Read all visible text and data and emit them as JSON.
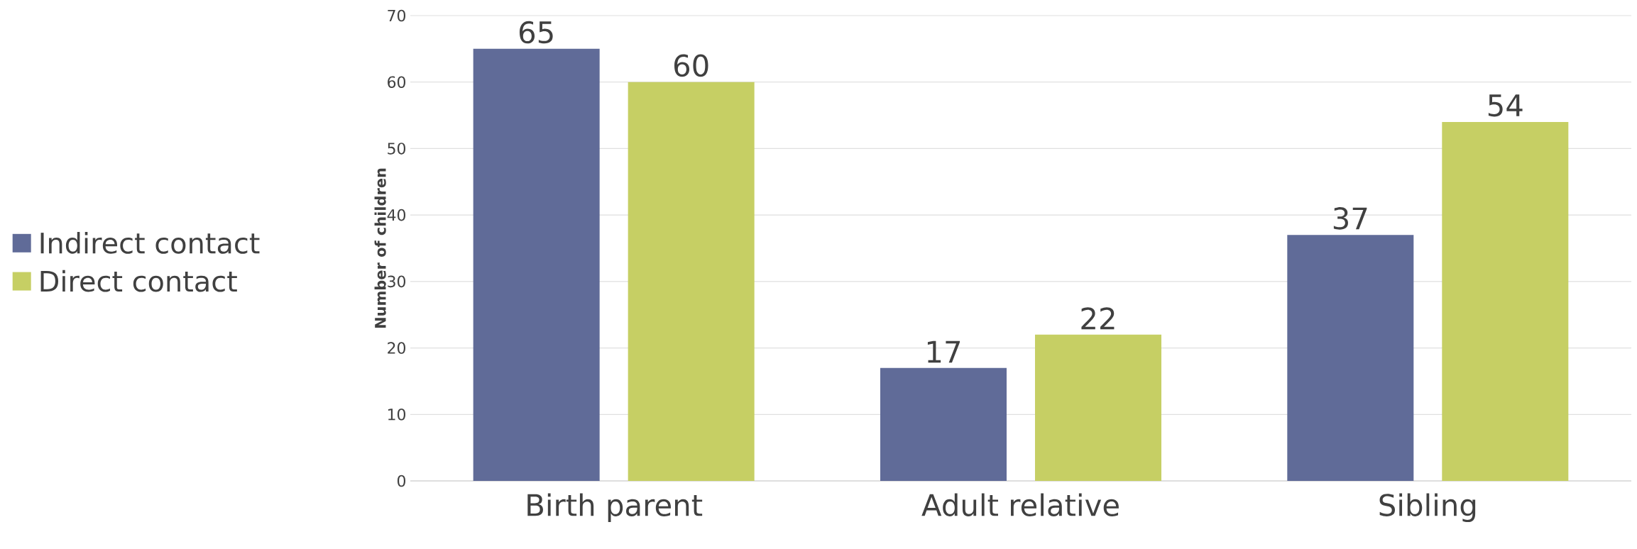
{
  "chart_data": {
    "type": "bar",
    "ylabel": "Number of children",
    "categories": [
      "Birth parent",
      "Adult relative",
      "Sibling"
    ],
    "series": [
      {
        "name": "Indirect contact",
        "color": "#606b98",
        "values": [
          65,
          17,
          37
        ]
      },
      {
        "name": "Direct contact",
        "color": "#c6cf64",
        "values": [
          60,
          22,
          54
        ]
      }
    ],
    "ylim": [
      0,
      70
    ],
    "yticks": [
      0,
      10,
      20,
      30,
      40,
      50,
      60,
      70
    ],
    "grid": "y",
    "legend": "left",
    "data_labels": true
  }
}
